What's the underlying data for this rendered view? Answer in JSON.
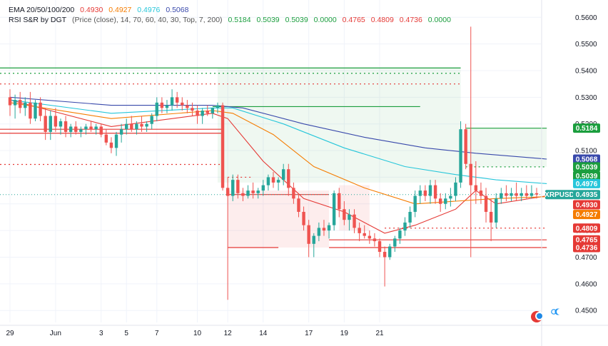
{
  "legend": {
    "ema": {
      "label": "EMA 20/50/100/200",
      "values": [
        {
          "text": "0.4930",
          "color": "#e53935"
        },
        {
          "text": "0.4927",
          "color": "#f57c00"
        },
        {
          "text": "0.4976",
          "color": "#26c6da"
        },
        {
          "text": "0.5068",
          "color": "#3949ab"
        }
      ]
    },
    "rsi": {
      "label": "RSI S&R by DGT",
      "params": "(Price (close), 14, 70, 60, 40, 30, Top, 7, 200)",
      "values": [
        {
          "text": "0.5184",
          "color": "#1b9e3e"
        },
        {
          "text": "0.5039",
          "color": "#1b9e3e"
        },
        {
          "text": "0.5039",
          "color": "#1b9e3e"
        },
        {
          "text": "0.0000",
          "color": "#1b9e3e"
        },
        {
          "text": "0.4765",
          "color": "#e53935"
        },
        {
          "text": "0.4809",
          "color": "#e53935"
        },
        {
          "text": "0.4736",
          "color": "#e53935"
        },
        {
          "text": "0.0000",
          "color": "#1b9e3e"
        }
      ]
    }
  },
  "chart_data": {
    "type": "candlestick",
    "symbol": "XRPUSD",
    "ylim": [
      0.4455,
      0.5665
    ],
    "y_ticks": [
      "0.5600",
      "0.5500",
      "0.5400",
      "0.5300",
      "0.5200",
      "0.5100",
      "0.5000",
      "0.4900",
      "0.4800",
      "0.4700",
      "0.4600",
      "0.4500"
    ],
    "x_ticks": [
      "29",
      "Jun",
      "3",
      "5",
      "7",
      "10",
      "12",
      "14",
      "17",
      "19",
      "21"
    ],
    "candles": [
      {
        "o": 0.53,
        "h": 0.533,
        "l": 0.523,
        "c": 0.527
      },
      {
        "o": 0.527,
        "h": 0.531,
        "l": 0.522,
        "c": 0.529
      },
      {
        "o": 0.529,
        "h": 0.532,
        "l": 0.524,
        "c": 0.526
      },
      {
        "o": 0.526,
        "h": 0.53,
        "l": 0.523,
        "c": 0.528
      },
      {
        "o": 0.528,
        "h": 0.532,
        "l": 0.52,
        "c": 0.522
      },
      {
        "o": 0.522,
        "h": 0.529,
        "l": 0.521,
        "c": 0.528
      },
      {
        "o": 0.528,
        "h": 0.53,
        "l": 0.521,
        "c": 0.523
      },
      {
        "o": 0.523,
        "h": 0.526,
        "l": 0.514,
        "c": 0.517
      },
      {
        "o": 0.517,
        "h": 0.525,
        "l": 0.514,
        "c": 0.523
      },
      {
        "o": 0.523,
        "h": 0.526,
        "l": 0.517,
        "c": 0.519
      },
      {
        "o": 0.519,
        "h": 0.522,
        "l": 0.516,
        "c": 0.521
      },
      {
        "o": 0.521,
        "h": 0.523,
        "l": 0.515,
        "c": 0.517
      },
      {
        "o": 0.517,
        "h": 0.52,
        "l": 0.515,
        "c": 0.519
      },
      {
        "o": 0.519,
        "h": 0.521,
        "l": 0.516,
        "c": 0.517
      },
      {
        "o": 0.517,
        "h": 0.519,
        "l": 0.515,
        "c": 0.518
      },
      {
        "o": 0.518,
        "h": 0.52,
        "l": 0.516,
        "c": 0.519
      },
      {
        "o": 0.519,
        "h": 0.521,
        "l": 0.517,
        "c": 0.518
      },
      {
        "o": 0.518,
        "h": 0.52,
        "l": 0.516,
        "c": 0.519
      },
      {
        "o": 0.519,
        "h": 0.52,
        "l": 0.515,
        "c": 0.516
      },
      {
        "o": 0.516,
        "h": 0.518,
        "l": 0.512,
        "c": 0.513
      },
      {
        "o": 0.513,
        "h": 0.515,
        "l": 0.509,
        "c": 0.511
      },
      {
        "o": 0.511,
        "h": 0.517,
        "l": 0.508,
        "c": 0.516
      },
      {
        "o": 0.516,
        "h": 0.52,
        "l": 0.513,
        "c": 0.518
      },
      {
        "o": 0.518,
        "h": 0.522,
        "l": 0.516,
        "c": 0.52
      },
      {
        "o": 0.52,
        "h": 0.523,
        "l": 0.517,
        "c": 0.518
      },
      {
        "o": 0.518,
        "h": 0.521,
        "l": 0.516,
        "c": 0.52
      },
      {
        "o": 0.52,
        "h": 0.523,
        "l": 0.517,
        "c": 0.519
      },
      {
        "o": 0.519,
        "h": 0.521,
        "l": 0.517,
        "c": 0.52
      },
      {
        "o": 0.52,
        "h": 0.524,
        "l": 0.518,
        "c": 0.523
      },
      {
        "o": 0.523,
        "h": 0.53,
        "l": 0.521,
        "c": 0.528
      },
      {
        "o": 0.528,
        "h": 0.53,
        "l": 0.524,
        "c": 0.526
      },
      {
        "o": 0.526,
        "h": 0.529,
        "l": 0.524,
        "c": 0.527
      },
      {
        "o": 0.527,
        "h": 0.533,
        "l": 0.525,
        "c": 0.53
      },
      {
        "o": 0.53,
        "h": 0.532,
        "l": 0.526,
        "c": 0.528
      },
      {
        "o": 0.528,
        "h": 0.53,
        "l": 0.525,
        "c": 0.527
      },
      {
        "o": 0.527,
        "h": 0.529,
        "l": 0.524,
        "c": 0.526
      },
      {
        "o": 0.526,
        "h": 0.528,
        "l": 0.523,
        "c": 0.525
      },
      {
        "o": 0.525,
        "h": 0.527,
        "l": 0.52,
        "c": 0.523
      },
      {
        "o": 0.523,
        "h": 0.526,
        "l": 0.52,
        "c": 0.525
      },
      {
        "o": 0.525,
        "h": 0.527,
        "l": 0.523,
        "c": 0.524
      },
      {
        "o": 0.524,
        "h": 0.526,
        "l": 0.522,
        "c": 0.526
      },
      {
        "o": 0.526,
        "h": 0.528,
        "l": 0.524,
        "c": 0.527
      },
      {
        "o": 0.527,
        "h": 0.528,
        "l": 0.495,
        "c": 0.496
      },
      {
        "o": 0.496,
        "h": 0.5,
        "l": 0.454,
        "c": 0.493
      },
      {
        "o": 0.493,
        "h": 0.501,
        "l": 0.491,
        "c": 0.499
      },
      {
        "o": 0.499,
        "h": 0.501,
        "l": 0.492,
        "c": 0.494
      },
      {
        "o": 0.494,
        "h": 0.496,
        "l": 0.491,
        "c": 0.493
      },
      {
        "o": 0.493,
        "h": 0.497,
        "l": 0.492,
        "c": 0.495
      },
      {
        "o": 0.495,
        "h": 0.498,
        "l": 0.492,
        "c": 0.494
      },
      {
        "o": 0.494,
        "h": 0.496,
        "l": 0.492,
        "c": 0.495
      },
      {
        "o": 0.495,
        "h": 0.499,
        "l": 0.493,
        "c": 0.497
      },
      {
        "o": 0.497,
        "h": 0.501,
        "l": 0.495,
        "c": 0.5
      },
      {
        "o": 0.5,
        "h": 0.502,
        "l": 0.496,
        "c": 0.498
      },
      {
        "o": 0.498,
        "h": 0.5,
        "l": 0.495,
        "c": 0.499
      },
      {
        "o": 0.499,
        "h": 0.505,
        "l": 0.497,
        "c": 0.503
      },
      {
        "o": 0.503,
        "h": 0.505,
        "l": 0.493,
        "c": 0.496
      },
      {
        "o": 0.496,
        "h": 0.498,
        "l": 0.49,
        "c": 0.492
      },
      {
        "o": 0.492,
        "h": 0.494,
        "l": 0.485,
        "c": 0.487
      },
      {
        "o": 0.487,
        "h": 0.489,
        "l": 0.48,
        "c": 0.482
      },
      {
        "o": 0.482,
        "h": 0.484,
        "l": 0.47,
        "c": 0.475
      },
      {
        "o": 0.475,
        "h": 0.479,
        "l": 0.47,
        "c": 0.478
      },
      {
        "o": 0.478,
        "h": 0.483,
        "l": 0.476,
        "c": 0.481
      },
      {
        "o": 0.481,
        "h": 0.484,
        "l": 0.478,
        "c": 0.48
      },
      {
        "o": 0.48,
        "h": 0.483,
        "l": 0.477,
        "c": 0.482
      },
      {
        "o": 0.482,
        "h": 0.495,
        "l": 0.48,
        "c": 0.494
      },
      {
        "o": 0.494,
        "h": 0.496,
        "l": 0.485,
        "c": 0.488
      },
      {
        "o": 0.488,
        "h": 0.491,
        "l": 0.482,
        "c": 0.484
      },
      {
        "o": 0.484,
        "h": 0.488,
        "l": 0.48,
        "c": 0.486
      },
      {
        "o": 0.486,
        "h": 0.488,
        "l": 0.479,
        "c": 0.481
      },
      {
        "o": 0.481,
        "h": 0.483,
        "l": 0.476,
        "c": 0.479
      },
      {
        "o": 0.479,
        "h": 0.482,
        "l": 0.477,
        "c": 0.478
      },
      {
        "o": 0.478,
        "h": 0.48,
        "l": 0.475,
        "c": 0.477
      },
      {
        "o": 0.477,
        "h": 0.479,
        "l": 0.474,
        "c": 0.476
      },
      {
        "o": 0.476,
        "h": 0.477,
        "l": 0.47,
        "c": 0.472
      },
      {
        "o": 0.472,
        "h": 0.474,
        "l": 0.459,
        "c": 0.47
      },
      {
        "o": 0.47,
        "h": 0.475,
        "l": 0.469,
        "c": 0.474
      },
      {
        "o": 0.474,
        "h": 0.478,
        "l": 0.472,
        "c": 0.477
      },
      {
        "o": 0.477,
        "h": 0.481,
        "l": 0.475,
        "c": 0.48
      },
      {
        "o": 0.48,
        "h": 0.485,
        "l": 0.478,
        "c": 0.483
      },
      {
        "o": 0.483,
        "h": 0.489,
        "l": 0.481,
        "c": 0.487
      },
      {
        "o": 0.487,
        "h": 0.495,
        "l": 0.485,
        "c": 0.493
      },
      {
        "o": 0.493,
        "h": 0.497,
        "l": 0.49,
        "c": 0.495
      },
      {
        "o": 0.495,
        "h": 0.497,
        "l": 0.491,
        "c": 0.493
      },
      {
        "o": 0.493,
        "h": 0.499,
        "l": 0.49,
        "c": 0.497
      },
      {
        "o": 0.497,
        "h": 0.499,
        "l": 0.49,
        "c": 0.492
      },
      {
        "o": 0.492,
        "h": 0.494,
        "l": 0.487,
        "c": 0.49
      },
      {
        "o": 0.49,
        "h": 0.494,
        "l": 0.488,
        "c": 0.492
      },
      {
        "o": 0.492,
        "h": 0.496,
        "l": 0.489,
        "c": 0.493
      },
      {
        "o": 0.493,
        "h": 0.5,
        "l": 0.491,
        "c": 0.498
      },
      {
        "o": 0.498,
        "h": 0.521,
        "l": 0.496,
        "c": 0.518
      },
      {
        "o": 0.518,
        "h": 0.52,
        "l": 0.503,
        "c": 0.505
      },
      {
        "o": 0.505,
        "h": 0.5565,
        "l": 0.47,
        "c": 0.497
      },
      {
        "o": 0.497,
        "h": 0.506,
        "l": 0.49,
        "c": 0.495
      },
      {
        "o": 0.495,
        "h": 0.498,
        "l": 0.49,
        "c": 0.493
      },
      {
        "o": 0.493,
        "h": 0.496,
        "l": 0.483,
        "c": 0.487
      },
      {
        "o": 0.487,
        "h": 0.492,
        "l": 0.476,
        "c": 0.483
      },
      {
        "o": 0.483,
        "h": 0.494,
        "l": 0.481,
        "c": 0.492
      },
      {
        "o": 0.492,
        "h": 0.496,
        "l": 0.49,
        "c": 0.494
      },
      {
        "o": 0.494,
        "h": 0.497,
        "l": 0.491,
        "c": 0.493
      },
      {
        "o": 0.493,
        "h": 0.496,
        "l": 0.491,
        "c": 0.494
      },
      {
        "o": 0.494,
        "h": 0.498,
        "l": 0.491,
        "c": 0.493
      },
      {
        "o": 0.493,
        "h": 0.496,
        "l": 0.491,
        "c": 0.494
      },
      {
        "o": 0.494,
        "h": 0.497,
        "l": 0.492,
        "c": 0.493
      },
      {
        "o": 0.493,
        "h": 0.497,
        "l": 0.492,
        "c": 0.494
      },
      {
        "o": 0.494,
        "h": 0.496,
        "l": 0.492,
        "c": 0.4935
      }
    ],
    "ema_series": [
      {
        "name": "EMA 20",
        "color": "#e53935",
        "start": 0.529,
        "end": 0.493,
        "path": [
          [
            0,
            0.529
          ],
          [
            20,
            0.519
          ],
          [
            40,
            0.524
          ],
          [
            43,
            0.522
          ],
          [
            50,
            0.506
          ],
          [
            58,
            0.492
          ],
          [
            66,
            0.487
          ],
          [
            74,
            0.479
          ],
          [
            80,
            0.482
          ],
          [
            88,
            0.488
          ],
          [
            92,
            0.495
          ],
          [
            96,
            0.49
          ],
          [
            106,
            0.493
          ]
        ]
      },
      {
        "name": "EMA 50",
        "color": "#f57c00",
        "start": 0.528,
        "end": 0.4927,
        "path": [
          [
            0,
            0.528
          ],
          [
            20,
            0.522
          ],
          [
            40,
            0.525
          ],
          [
            44,
            0.524
          ],
          [
            52,
            0.516
          ],
          [
            60,
            0.504
          ],
          [
            70,
            0.496
          ],
          [
            80,
            0.49
          ],
          [
            88,
            0.491
          ],
          [
            96,
            0.492
          ],
          [
            106,
            0.4927
          ]
        ]
      },
      {
        "name": "EMA 100",
        "color": "#26c6da",
        "start": 0.529,
        "end": 0.4976,
        "path": [
          [
            0,
            0.529
          ],
          [
            20,
            0.524
          ],
          [
            40,
            0.526
          ],
          [
            44,
            0.526
          ],
          [
            54,
            0.52
          ],
          [
            66,
            0.511
          ],
          [
            78,
            0.504
          ],
          [
            88,
            0.501
          ],
          [
            96,
            0.499
          ],
          [
            106,
            0.4976
          ]
        ]
      },
      {
        "name": "EMA 200",
        "color": "#3949ab",
        "start": 0.53,
        "end": 0.5068,
        "path": [
          [
            0,
            0.53
          ],
          [
            20,
            0.527
          ],
          [
            40,
            0.527
          ],
          [
            46,
            0.526
          ],
          [
            58,
            0.52
          ],
          [
            70,
            0.515
          ],
          [
            82,
            0.511
          ],
          [
            92,
            0.509
          ],
          [
            106,
            0.5068
          ]
        ]
      }
    ],
    "price_tags": [
      {
        "text": "0.5184",
        "value": 0.5184,
        "bg": "#1b9e3e"
      },
      {
        "text": "0.5068",
        "value": 0.5068,
        "bg": "#3949ab"
      },
      {
        "text": "0.5039",
        "value": 0.5039,
        "bg": "#1b9e3e"
      },
      {
        "text": "0.5039",
        "value": 0.5039,
        "bg": "#1b9e3e",
        "stack": 1
      },
      {
        "text": "0.4976",
        "value": 0.4976,
        "bg": "#26c6da"
      },
      {
        "text": "XRPUSD",
        "value": 0.4935,
        "bg": "#26a69a",
        "side": "left"
      },
      {
        "text": "0.4935",
        "value": 0.4935,
        "bg": "#26a69a"
      },
      {
        "text": "0.4930",
        "value": 0.493,
        "bg": "#e53935",
        "stack": 1
      },
      {
        "text": "0.4927",
        "value": 0.4927,
        "bg": "#f57c00",
        "stack": 2
      },
      {
        "text": "0.4809",
        "value": 0.4809,
        "bg": "#e53935"
      },
      {
        "text": "0.4765",
        "value": 0.4765,
        "bg": "#e53935"
      },
      {
        "text": "0.4736",
        "value": 0.4736,
        "bg": "#e53935"
      }
    ],
    "grid": true,
    "colors": {
      "up": "#26a69a",
      "down": "#ef5350",
      "support": "#e53935",
      "resistance": "#1b9e3e"
    }
  }
}
